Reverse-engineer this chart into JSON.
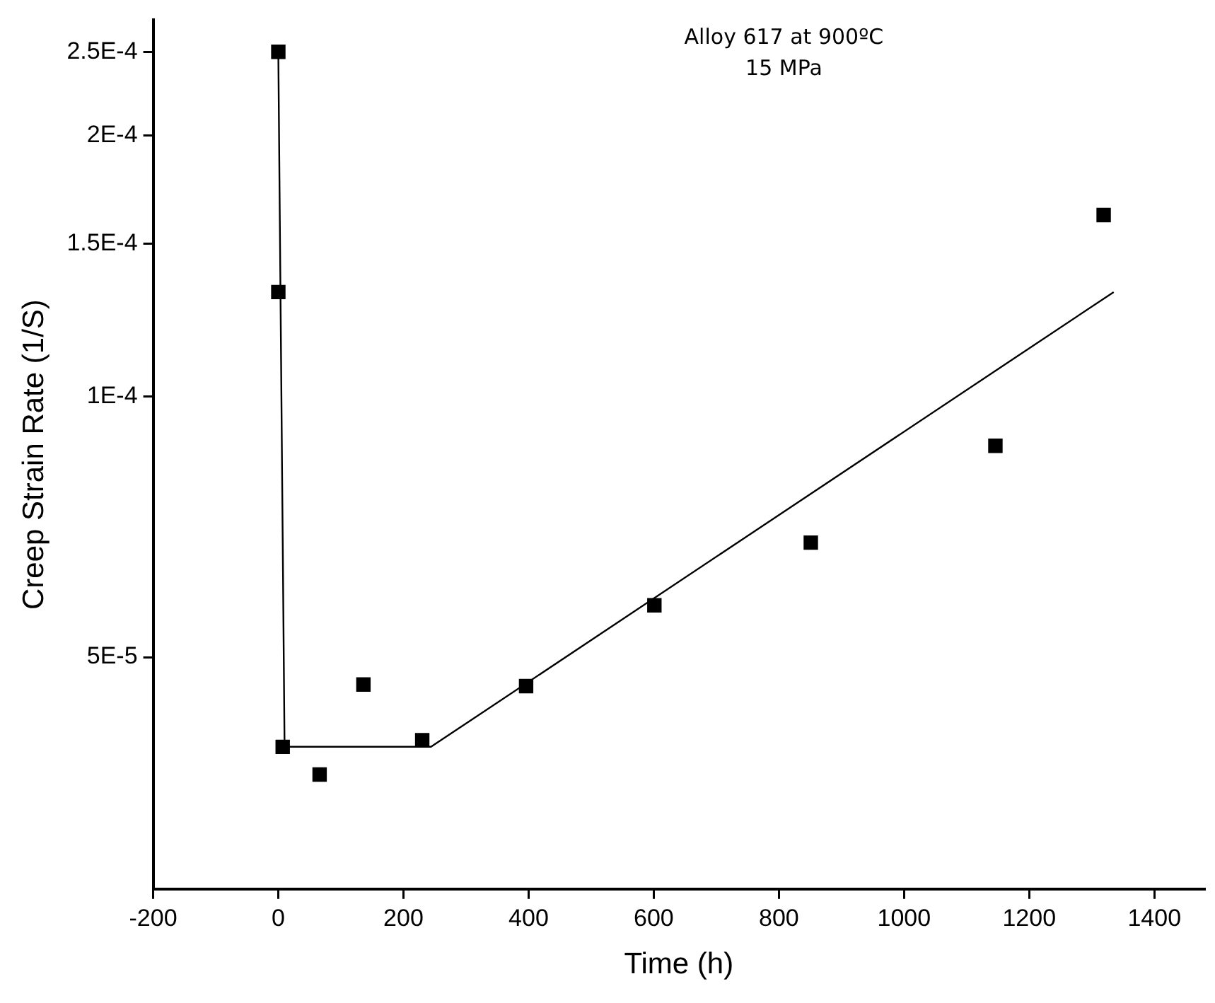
{
  "chart_data": {
    "type": "scatter",
    "xlabel": "Time (h)",
    "ylabel": "Creep Strain Rate (1/S)",
    "annotations": [
      "Alloy 617 at 900ºC",
      "15 MPa"
    ],
    "log": "y",
    "grid": false,
    "legend": false,
    "marker": "square",
    "xlim": [
      -200,
      1480
    ],
    "xticks": [
      -200,
      0,
      200,
      400,
      600,
      800,
      1000,
      1200,
      1400
    ],
    "ylim": [
      2.7e-05,
      0.000272
    ],
    "yticks": [
      {
        "value": 5e-05,
        "label": "5E-5"
      },
      {
        "value": 0.0001,
        "label": "1E-4"
      },
      {
        "value": 0.00015,
        "label": "1.5E-4"
      },
      {
        "value": 0.0002,
        "label": "2E-4"
      },
      {
        "value": 0.00025,
        "label": "2.5E-4"
      }
    ],
    "series": [
      {
        "type": "scatter",
        "color": "#000000",
        "x": [
          0,
          0,
          7,
          66,
          136,
          230,
          396,
          601,
          851,
          1146,
          1319
        ],
        "values": [
          0.00025,
          0.000132,
          3.94e-05,
          3.66e-05,
          4.65e-05,
          4.01e-05,
          4.63e-05,
          5.74e-05,
          6.78e-05,
          8.77e-05,
          0.000162
        ]
      },
      {
        "type": "line",
        "color": "#000000",
        "marker": "none",
        "line_style": "solid",
        "x": [
          0,
          10,
          244,
          1335
        ],
        "values": [
          0.00025,
          3.94e-05,
          3.94e-05,
          0.000132
        ]
      }
    ]
  }
}
